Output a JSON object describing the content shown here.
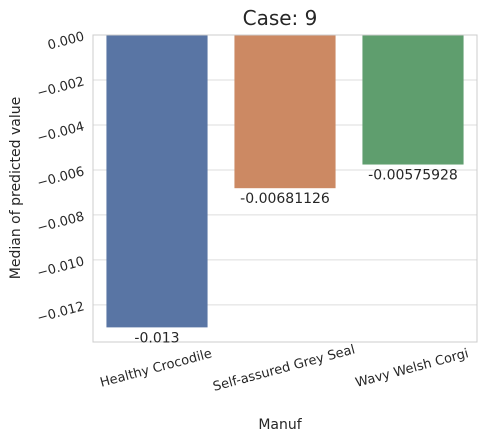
{
  "chart_data": {
    "type": "bar",
    "title": "Case: 9",
    "xlabel": "Manuf",
    "ylabel": "Median of predicted value",
    "categories": [
      "Healthy Crocodile",
      "Self-assured Grey Seal",
      "Wavy Welsh Corgi"
    ],
    "values": [
      -0.013,
      -0.00681126,
      -0.00575928
    ],
    "data_labels": [
      "-0.013",
      "-0.00681126",
      "-0.00575928"
    ],
    "ylim": [
      -0.01365,
      0.0
    ],
    "yticks": [
      0.0,
      -0.002,
      -0.004,
      -0.006,
      -0.008,
      -0.01,
      -0.012
    ],
    "ytick_labels": [
      "0.000",
      "−0.002",
      "−0.004",
      "−0.006",
      "−0.008",
      "−0.010",
      "−0.012"
    ],
    "bar_colors": [
      "#5975a4",
      "#cc8963",
      "#5f9e6e"
    ],
    "grid": "horizontal",
    "legend": "none"
  }
}
